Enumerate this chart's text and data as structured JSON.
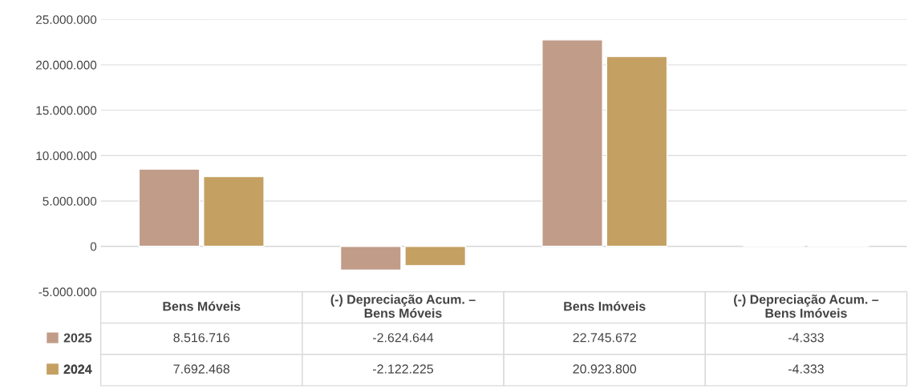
{
  "chart_data": {
    "type": "bar",
    "categories": [
      "Bens Móveis",
      "(-) Depreciação Acum. –\nBens Móveis",
      "Bens Imóveis",
      "(-) Depreciação Acum. –\nBens Imóveis"
    ],
    "series": [
      {
        "name": "2025",
        "color": "#c19c88",
        "values": [
          8516716,
          -2624644,
          22745672,
          -4333
        ],
        "value_labels": [
          "8.516.716",
          "-2.624.644",
          "22.745.672",
          "-4.333"
        ]
      },
      {
        "name": "2024",
        "color": "#c4a063",
        "values": [
          7692468,
          -2122225,
          20923800,
          -4333
        ],
        "value_labels": [
          "7.692.468",
          "-2.122.225",
          "20.923.800",
          "-4.333"
        ]
      }
    ],
    "ylim": [
      -5000000,
      25000000
    ],
    "yticks": [
      {
        "value": -5000000,
        "label": "-5.000.000"
      },
      {
        "value": 0,
        "label": "0"
      },
      {
        "value": 5000000,
        "label": "5.000.000"
      },
      {
        "value": 10000000,
        "label": "10.000.000"
      },
      {
        "value": 15000000,
        "label": "15.000.000"
      },
      {
        "value": 20000000,
        "label": "20.000.000"
      },
      {
        "value": 25000000,
        "label": "25.000.000"
      }
    ],
    "grid": "y",
    "legend": "bottom left"
  }
}
